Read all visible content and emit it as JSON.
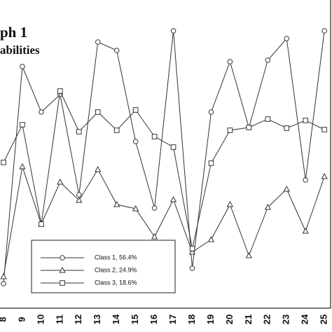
{
  "chart_data": {
    "type": "line",
    "title": "ph 1",
    "subtitle": "abilities",
    "categories": [
      "8",
      "9",
      "10",
      "11",
      "12",
      "13",
      "14",
      "15",
      "16",
      "17",
      "18",
      "19",
      "20",
      "21",
      "22",
      "23",
      "24",
      "25"
    ],
    "ylim": [
      0,
      474
    ],
    "series": [
      {
        "name": "Class 1, 56.4%",
        "color": "#333333",
        "marker": "circle",
        "values": [
          69,
          379,
          314,
          339,
          196,
          414,
          402,
          272,
          177,
          430,
          91,
          314,
          386,
          292,
          388,
          419,
          217,
          430
        ]
      },
      {
        "name": "Class 2, 24.9%",
        "color": "#333333",
        "marker": "triangle",
        "values": [
          79,
          236,
          154,
          214,
          188,
          232,
          182,
          176,
          136,
          189,
          114,
          132,
          182,
          109,
          178,
          204,
          144,
          222
        ]
      },
      {
        "name": "Class 3, 18.6%",
        "color": "#333333",
        "marker": "square",
        "values": [
          242,
          296,
          154,
          344,
          286,
          314,
          288,
          317,
          279,
          264,
          119,
          241,
          288,
          292,
          304,
          291,
          302,
          289
        ]
      }
    ]
  }
}
